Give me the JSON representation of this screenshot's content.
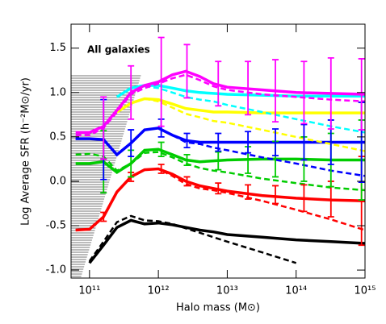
{
  "chart_data": {
    "type": "line",
    "annotation": "All galaxies",
    "xlabel": "Halo mass (M⊙)",
    "ylabel": "Log Average SFR (h⁻²M⊙/yr)",
    "xscale": "log",
    "xlim": [
      54000000000.0,
      1000000000000000.0
    ],
    "ylim": [
      -1.09,
      1.77
    ],
    "xticks": [
      {
        "value": 100000000000.0,
        "label": "10¹¹"
      },
      {
        "value": 1000000000000.0,
        "label": "10¹²"
      },
      {
        "value": 10000000000000.0,
        "label": "10¹³"
      },
      {
        "value": 100000000000000.0,
        "label": "10¹⁴"
      },
      {
        "value": 1000000000000000.0,
        "label": "10¹⁵"
      }
    ],
    "yticks": [
      {
        "value": -1,
        "label": "-1.0"
      },
      -0.5,
      {
        "value": 0,
        "label": "0.0"
      },
      0.5,
      {
        "value": 1,
        "label": "1.0"
      },
      1.5
    ],
    "x": [
      63000000000.0,
      100000000000.0,
      160000000000.0,
      250000000000.0,
      400000000000.0,
      630000000000.0,
      1000000000000.0,
      1600000000000.0,
      2500000000000.0,
      4000000000000.0,
      6300000000000.0,
      10000000000000.0,
      32000000000000.0,
      100000000000000.0,
      320000000000000.0,
      1000000000000000.0
    ],
    "series": [
      {
        "color": "#000000",
        "style": "solid",
        "values": [
          null,
          -0.92,
          -0.72,
          -0.52,
          -0.44,
          -0.48,
          -0.47,
          -0.49,
          -0.52,
          -0.55,
          -0.57,
          -0.6,
          -0.63,
          -0.66,
          -0.68,
          -0.7
        ]
      },
      {
        "color": "#000000",
        "style": "dashed",
        "values": [
          null,
          -0.9,
          -0.68,
          -0.46,
          -0.39,
          -0.44,
          -0.45,
          -0.48,
          -0.53,
          -0.58,
          -0.63,
          -0.68,
          -0.8,
          -0.92,
          null,
          null
        ]
      },
      {
        "color": "#ff0000",
        "style": "solid",
        "values": [
          -0.55,
          -0.54,
          -0.4,
          -0.12,
          0.05,
          0.13,
          0.14,
          0.08,
          0.0,
          -0.05,
          -0.08,
          -0.11,
          -0.16,
          -0.19,
          -0.21,
          -0.22
        ]
      },
      {
        "color": "#ff0000",
        "style": "dashed",
        "values": [
          -0.55,
          -0.54,
          -0.4,
          -0.12,
          0.05,
          0.13,
          0.14,
          0.06,
          -0.03,
          -0.08,
          -0.1,
          -0.13,
          -0.22,
          -0.32,
          -0.43,
          -0.55
        ]
      },
      {
        "color": "#00cc00",
        "style": "solid",
        "values": [
          0.2,
          0.2,
          0.22,
          0.1,
          0.2,
          0.35,
          0.36,
          0.3,
          0.24,
          0.22,
          0.23,
          0.24,
          0.25,
          0.25,
          0.24,
          0.24
        ]
      },
      {
        "color": "#00cc00",
        "style": "dashed",
        "values": [
          0.3,
          0.31,
          0.28,
          0.12,
          0.2,
          0.32,
          0.33,
          0.27,
          0.2,
          0.15,
          0.12,
          0.1,
          0.03,
          -0.02,
          -0.07,
          -0.1
        ]
      },
      {
        "color": "#0000ff",
        "style": "solid",
        "values": [
          0.48,
          0.48,
          0.47,
          0.3,
          0.43,
          0.58,
          0.6,
          0.52,
          0.46,
          0.44,
          0.44,
          0.44,
          0.44,
          0.44,
          0.44,
          0.44
        ]
      },
      {
        "color": "#0000ff",
        "style": "dashed",
        "values": [
          0.48,
          0.48,
          0.47,
          0.3,
          0.43,
          0.58,
          0.6,
          0.52,
          0.44,
          0.42,
          0.38,
          0.35,
          0.27,
          0.2,
          0.12,
          0.06
        ]
      },
      {
        "color": "#ffff00",
        "style": "solid",
        "values": [
          null,
          null,
          null,
          0.78,
          0.88,
          0.93,
          0.92,
          0.87,
          0.82,
          0.8,
          0.78,
          0.78,
          0.77,
          0.77,
          0.77,
          0.77
        ]
      },
      {
        "color": "#ffff00",
        "style": "dashed",
        "values": [
          null,
          null,
          null,
          null,
          null,
          0.93,
          0.9,
          0.83,
          0.76,
          0.72,
          0.68,
          0.66,
          0.58,
          0.5,
          0.42,
          0.34
        ]
      },
      {
        "color": "#00ffff",
        "style": "solid",
        "values": [
          null,
          null,
          null,
          0.95,
          1.05,
          1.08,
          1.08,
          1.05,
          1.02,
          1.0,
          0.99,
          0.98,
          0.97,
          0.96,
          0.96,
          0.96
        ]
      },
      {
        "color": "#00ffff",
        "style": "dashed",
        "values": [
          null,
          null,
          null,
          null,
          null,
          1.07,
          1.05,
          1.0,
          0.95,
          0.92,
          0.9,
          0.86,
          0.78,
          0.7,
          0.62,
          0.55
        ]
      },
      {
        "color": "#ff00ff",
        "style": "solid",
        "values": [
          0.55,
          0.55,
          0.62,
          0.8,
          1.0,
          1.08,
          1.12,
          1.2,
          1.24,
          1.18,
          1.1,
          1.06,
          1.03,
          1.0,
          0.99,
          0.98
        ]
      },
      {
        "color": "#ff00ff",
        "style": "dashed",
        "values": [
          0.52,
          0.52,
          0.6,
          0.78,
          0.98,
          1.05,
          1.1,
          1.16,
          1.2,
          1.14,
          1.07,
          1.03,
          0.98,
          0.95,
          0.92,
          0.9
        ]
      }
    ],
    "errorbars": [
      {
        "color": "#ff0000",
        "x": [
          160000000000.0,
          400000000000.0,
          1100000000000.0,
          2600000000000.0,
          7400000000000.0,
          20000000000000.0,
          50000000000000.0,
          130000000000000.0,
          320000000000000.0,
          890000000000000.0
        ],
        "values": [
          -0.4,
          0.05,
          0.14,
          0.0,
          -0.08,
          -0.12,
          -0.15,
          -0.19,
          -0.2,
          -0.22
        ],
        "errors": [
          0.05,
          0.05,
          0.05,
          0.05,
          0.06,
          0.08,
          0.1,
          0.15,
          0.2,
          0.5
        ]
      },
      {
        "color": "#00cc00",
        "x": [
          160000000000.0,
          400000000000.0,
          1100000000000.0,
          2600000000000.0,
          7400000000000.0,
          20000000000000.0,
          50000000000000.0,
          130000000000000.0,
          320000000000000.0,
          890000000000000.0
        ],
        "values": [
          0.22,
          0.2,
          0.36,
          0.24,
          0.23,
          0.24,
          0.25,
          0.25,
          0.24,
          0.24
        ],
        "errors": [
          0.35,
          0.15,
          0.08,
          0.06,
          0.1,
          0.15,
          0.2,
          0.25,
          0.3,
          0.45
        ]
      },
      {
        "color": "#0000ff",
        "x": [
          160000000000.0,
          400000000000.0,
          1100000000000.0,
          2600000000000.0,
          7400000000000.0,
          20000000000000.0,
          50000000000000.0,
          130000000000000.0,
          320000000000000.0,
          890000000000000.0
        ],
        "values": [
          0.47,
          0.43,
          0.6,
          0.46,
          0.44,
          0.44,
          0.44,
          0.44,
          0.44,
          0.44
        ],
        "errors": [
          0.45,
          0.15,
          0.1,
          0.08,
          0.1,
          0.12,
          0.15,
          0.2,
          0.25,
          0.45
        ]
      },
      {
        "color": "#ff00ff",
        "x": [
          160000000000.0,
          400000000000.0,
          1100000000000.0,
          2600000000000.0,
          7400000000000.0,
          20000000000000.0,
          50000000000000.0,
          130000000000000.0,
          320000000000000.0,
          890000000000000.0
        ],
        "values": [
          0.6,
          1.0,
          1.12,
          1.24,
          1.1,
          1.05,
          1.02,
          1.0,
          0.99,
          0.98
        ],
        "errors": [
          0.35,
          0.3,
          0.5,
          0.3,
          0.25,
          0.3,
          0.35,
          0.35,
          0.4,
          0.4
        ]
      }
    ]
  }
}
